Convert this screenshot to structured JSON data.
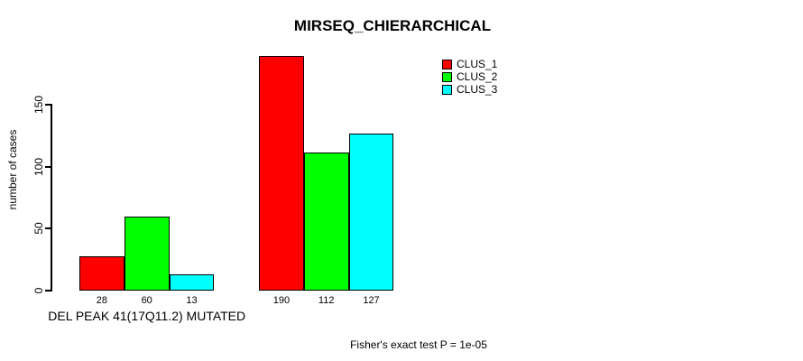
{
  "chart_data": {
    "type": "bar",
    "title": "MIRSEQ_CHIERARCHICAL",
    "ylabel": "number of cases",
    "yticks": [
      0,
      50,
      100,
      150
    ],
    "ylim": [
      0,
      195
    ],
    "grid": false,
    "legend_position": "top-right",
    "groups": [
      {
        "label": "DEL PEAK 41(17Q11.2) MUTATED",
        "values": [
          28,
          60,
          13
        ]
      },
      {
        "label": "",
        "values": [
          190,
          112,
          127
        ]
      }
    ],
    "legend": [
      {
        "name": "CLUS_1",
        "color": "#FF0000"
      },
      {
        "name": "CLUS_2",
        "color": "#00FF00"
      },
      {
        "name": "CLUS_3",
        "color": "#00FFFF"
      }
    ],
    "annotation": "Fisher's exact test P = 1e-05"
  }
}
